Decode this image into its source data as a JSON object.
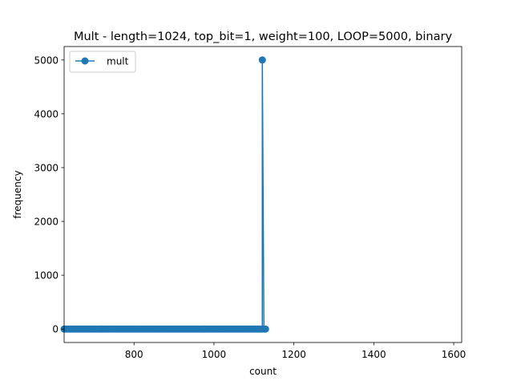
{
  "chart_data": {
    "type": "line",
    "title": "Mult - length=1024, top_bit=1, weight=100, LOOP=5000, binary",
    "xlabel": "count",
    "ylabel": "frequency",
    "xlim": [
      625,
      1620
    ],
    "ylim": [
      -250,
      5250
    ],
    "xticks": [
      800,
      1000,
      1200,
      1400,
      1600
    ],
    "yticks": [
      0,
      1000,
      2000,
      3000,
      4000,
      5000
    ],
    "grid": false,
    "legend": {
      "position": "top-left",
      "entries": [
        "mult"
      ]
    },
    "series": [
      {
        "name": "mult",
        "color": "#1f77b4",
        "marker": "circle",
        "baseline_range": [
          625,
          1129
        ],
        "baseline_step": 4,
        "baseline_value": 0,
        "peak": {
          "x": 1121,
          "y": 5000
        }
      }
    ]
  }
}
